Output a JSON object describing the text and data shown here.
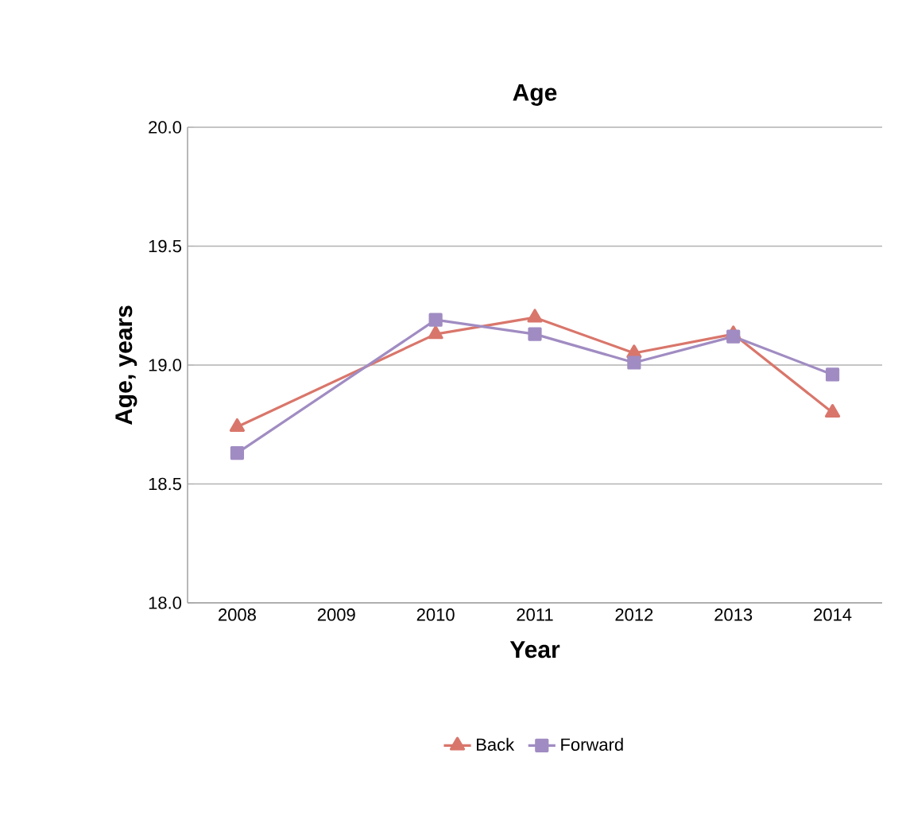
{
  "chart_data": {
    "type": "line",
    "title": "Age",
    "xlabel": "Year",
    "ylabel": "Age, years",
    "categories": [
      "2008",
      "2009",
      "2010",
      "2011",
      "2012",
      "2013",
      "2014"
    ],
    "series": [
      {
        "name": "Back",
        "color": "#d9766b",
        "marker": "triangle",
        "values": [
          18.74,
          null,
          19.13,
          19.2,
          19.05,
          19.13,
          18.8
        ]
      },
      {
        "name": "Forward",
        "color": "#a08cc2",
        "marker": "square",
        "values": [
          18.63,
          null,
          19.19,
          19.13,
          19.01,
          19.12,
          18.96
        ]
      }
    ],
    "ylim": [
      18.0,
      20.0
    ],
    "yticks": [
      {
        "value": 18.0,
        "label": "18.0"
      },
      {
        "value": 18.5,
        "label": "18.5"
      },
      {
        "value": 19.0,
        "label": "19.0"
      },
      {
        "value": 19.5,
        "label": "19.5"
      },
      {
        "value": 20.0,
        "label": "20.0"
      }
    ],
    "grid": "y",
    "legend": "bottom",
    "line_style": "solid"
  }
}
